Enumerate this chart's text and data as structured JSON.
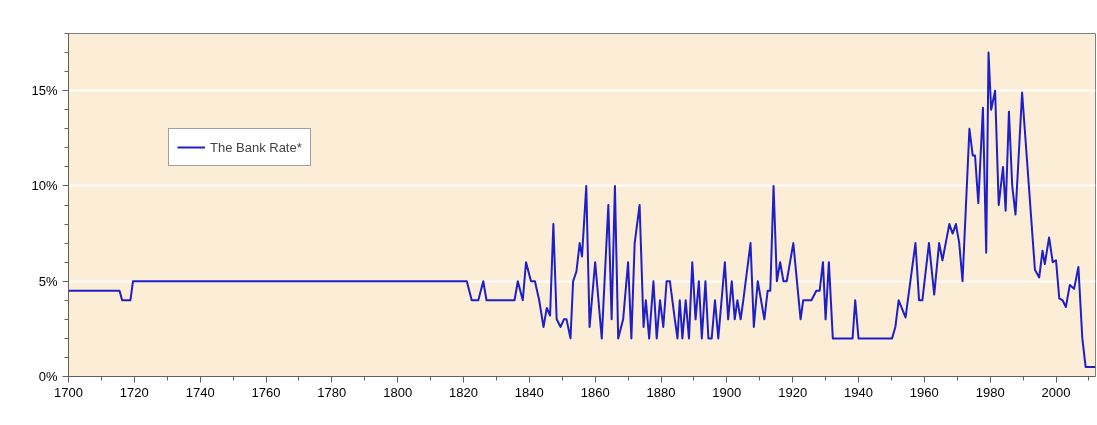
{
  "chart_data": {
    "type": "line",
    "x": [
      1700,
      1715.5,
      1716.3,
      1718.8,
      1719.6,
      1821,
      1822.5,
      1824.5,
      1826,
      1827,
      1835.5,
      1836.5,
      1838,
      1839,
      1840.5,
      1841.7,
      1843,
      1844.3,
      1845.3,
      1846.3,
      1847.3,
      1848.3,
      1849.5,
      1850.5,
      1851.3,
      1852.5,
      1853.3,
      1854.3,
      1855.3,
      1856,
      1857.3,
      1858.3,
      1860,
      1862,
      1864,
      1865,
      1866,
      1867,
      1868.5,
      1870,
      1871,
      1872,
      1873.5,
      1874.7,
      1875.4,
      1876.4,
      1877.7,
      1878.7,
      1879.7,
      1880.7,
      1881.7,
      1882.7,
      1884.2,
      1885,
      1885.7,
      1886.5,
      1887.5,
      1888.5,
      1889.5,
      1890.5,
      1891.5,
      1892.4,
      1893.5,
      1894.4,
      1895.4,
      1896.4,
      1897.4,
      1899.4,
      1900.4,
      1901.5,
      1902.4,
      1903.2,
      1904.2,
      1905,
      1907.2,
      1908.2,
      1909.4,
      1911.4,
      1912.4,
      1913.2,
      1914.2,
      1915.2,
      1916.2,
      1917.2,
      1918.2,
      1920.2,
      1922.4,
      1923.2,
      1925.7,
      1927.2,
      1928.2,
      1929.2,
      1930,
      1931,
      1932.2,
      1938.2,
      1939,
      1940,
      1950.2,
      1951.2,
      1952.2,
      1954.3,
      1957.3,
      1958.4,
      1959.4,
      1961.4,
      1963,
      1964.5,
      1965.5,
      1966.5,
      1967.6,
      1968.6,
      1969.6,
      1970.6,
      1971.6,
      1973.7,
      1974.7,
      1975.4,
      1976.4,
      1977.8,
      1978.8,
      1979.5,
      1980.3,
      1981.5,
      1982.6,
      1983.9,
      1984.7,
      1985.7,
      1986.7,
      1987.7,
      1989.7,
      1990.5,
      1993.6,
      1994.9,
      1995.9,
      1996.6,
      1997.9,
      1999,
      2000,
      2001,
      2002,
      2003,
      2004.2,
      2005.5,
      2006.8,
      2008,
      2009,
      2012
    ],
    "series": [
      {
        "name": "The Bank Rate*",
        "color": "#1f1fc8",
        "values": [
          4.5,
          4.5,
          4,
          4,
          5,
          5,
          4,
          4,
          5,
          4,
          4,
          5,
          4,
          6,
          5,
          5,
          4,
          2.6,
          3.6,
          3.2,
          8,
          3,
          2.6,
          3,
          3,
          2,
          5,
          5.5,
          7,
          6.3,
          10,
          2.6,
          6,
          2,
          9,
          3,
          10,
          2,
          3,
          6,
          2,
          7,
          9,
          2.6,
          4,
          2,
          5,
          2,
          4,
          2.6,
          5,
          5,
          3,
          2,
          4,
          2,
          4,
          2,
          6,
          3,
          5,
          2,
          5,
          2,
          2,
          4,
          2,
          6,
          3,
          5,
          3,
          4,
          3,
          4,
          7,
          2.6,
          5,
          3,
          4.5,
          4.5,
          10,
          5,
          6,
          5,
          5,
          7,
          3,
          4,
          4,
          4.5,
          4.5,
          6,
          3,
          6,
          2,
          2,
          4,
          2,
          2,
          2.6,
          4,
          3.1,
          7,
          4,
          4,
          7,
          4.3,
          7,
          6.1,
          7,
          8,
          7.5,
          8,
          7,
          5,
          13,
          11.6,
          11.6,
          9.1,
          14.1,
          6.5,
          17,
          14,
          15,
          9,
          11,
          8.7,
          13.9,
          10,
          8.5,
          14.9,
          13,
          5.6,
          5.2,
          6.6,
          5.9,
          7.3,
          6,
          6.1,
          4.1,
          4,
          3.65,
          4.8,
          4.6,
          5.75,
          2,
          0.5,
          0.5
        ]
      }
    ],
    "xlim": [
      1700,
      2012
    ],
    "xticks": [
      1700,
      {
        "value": 1710,
        "label": null
      },
      1720,
      {
        "value": 1730,
        "label": null
      },
      1740,
      {
        "value": 1750,
        "label": null
      },
      1760,
      {
        "value": 1770,
        "label": null
      },
      1780,
      {
        "value": 1790,
        "label": null
      },
      1800,
      {
        "value": 1810,
        "label": null
      },
      1820,
      {
        "value": 1830,
        "label": null
      },
      1840,
      {
        "value": 1850,
        "label": null
      },
      1860,
      {
        "value": 1870,
        "label": null
      },
      1880,
      {
        "value": 1890,
        "label": null
      },
      1900,
      {
        "value": 1910,
        "label": null
      },
      1920,
      {
        "value": 1930,
        "label": null
      },
      1940,
      {
        "value": 1950,
        "label": null
      },
      1960,
      {
        "value": 1970,
        "label": null
      },
      1980,
      {
        "value": 1990,
        "label": null
      },
      2000,
      {
        "value": 2010,
        "label": null
      }
    ],
    "ylim": [
      0,
      18
    ],
    "yticks": [
      {
        "value": 0,
        "label": "0%"
      },
      {
        "value": 1,
        "label": null
      },
      {
        "value": 2,
        "label": null
      },
      {
        "value": 3,
        "label": null
      },
      {
        "value": 4,
        "label": null
      },
      {
        "value": 5,
        "label": "5%"
      },
      {
        "value": 6,
        "label": null
      },
      {
        "value": 7,
        "label": null
      },
      {
        "value": 8,
        "label": null
      },
      {
        "value": 9,
        "label": null
      },
      {
        "value": 10,
        "label": "10%"
      },
      {
        "value": 11,
        "label": null
      },
      {
        "value": 12,
        "label": null
      },
      {
        "value": 13,
        "label": null
      },
      {
        "value": 14,
        "label": null
      },
      {
        "value": 15,
        "label": "15%"
      },
      {
        "value": 16,
        "label": null
      },
      {
        "value": 17,
        "label": null
      },
      {
        "value": 18,
        "label": null
      }
    ],
    "grid": "y",
    "legend": "top left"
  }
}
